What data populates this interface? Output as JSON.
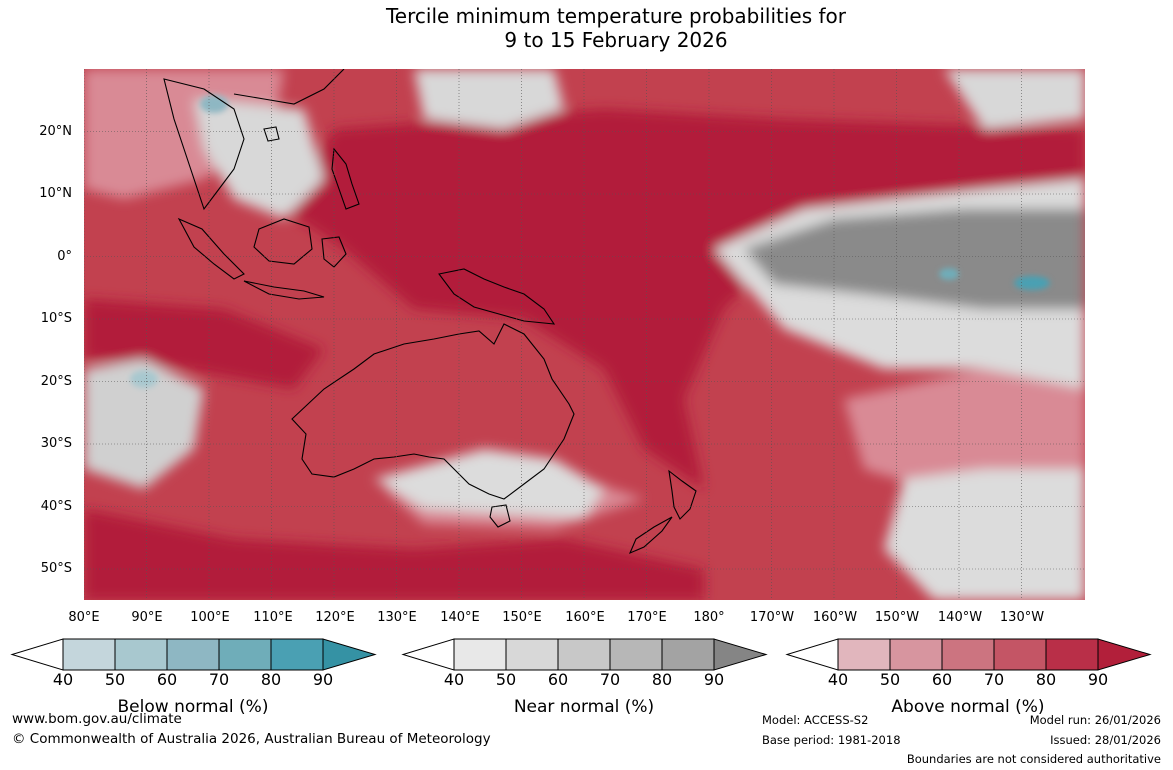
{
  "title": {
    "line1": "Tercile minimum temperature probabilities for",
    "line2": "9 to 15 February 2026"
  },
  "map": {
    "lat_labels": [
      "20°N",
      "10°N",
      "0°",
      "10°S",
      "20°S",
      "30°S",
      "40°S",
      "50°S"
    ],
    "lon_labels": [
      "80°E",
      "90°E",
      "100°E",
      "110°E",
      "120°E",
      "130°E",
      "140°E",
      "150°E",
      "160°E",
      "170°E",
      "180°",
      "170°W",
      "160°W",
      "150°W",
      "140°W",
      "130°W"
    ],
    "colors": {
      "above_dark": "#b21f3a",
      "above_mid": "#c7485c",
      "above_light": "#d98a95",
      "near_light": "#dcdcdc",
      "near_dark": "#8a8a8a",
      "below": "#4aa0b3"
    }
  },
  "legend": {
    "ticks": [
      "40",
      "50",
      "60",
      "70",
      "80",
      "90"
    ],
    "below": {
      "title": "Below normal (%)",
      "colors": [
        "#ffffff",
        "#c4d6dc",
        "#a8c8cf",
        "#8eb7c3",
        "#6fadb9",
        "#4aa0b3",
        "#3592a4"
      ]
    },
    "near": {
      "title": "Near normal (%)",
      "colors": [
        "#ffffff",
        "#e8e8e8",
        "#d8d8d8",
        "#c8c8c8",
        "#b7b7b7",
        "#a3a3a3",
        "#858585"
      ]
    },
    "above": {
      "title": "Above normal (%)",
      "colors": [
        "#ffffff",
        "#e1b6bd",
        "#d7959f",
        "#cc7480",
        "#c45565",
        "#b92f48",
        "#b21f3a"
      ]
    }
  },
  "footer": {
    "website": "www.bom.gov.au/climate",
    "copyright": "© Commonwealth of Australia 2026, Australian Bureau of Meteorology",
    "model": "Model: ACCESS-S2",
    "base_period": "Base period: 1981-2018",
    "model_run": "Model run: 26/01/2026",
    "issued": "Issued: 28/01/2026",
    "boundaries": "Boundaries are not considered authoritative"
  }
}
